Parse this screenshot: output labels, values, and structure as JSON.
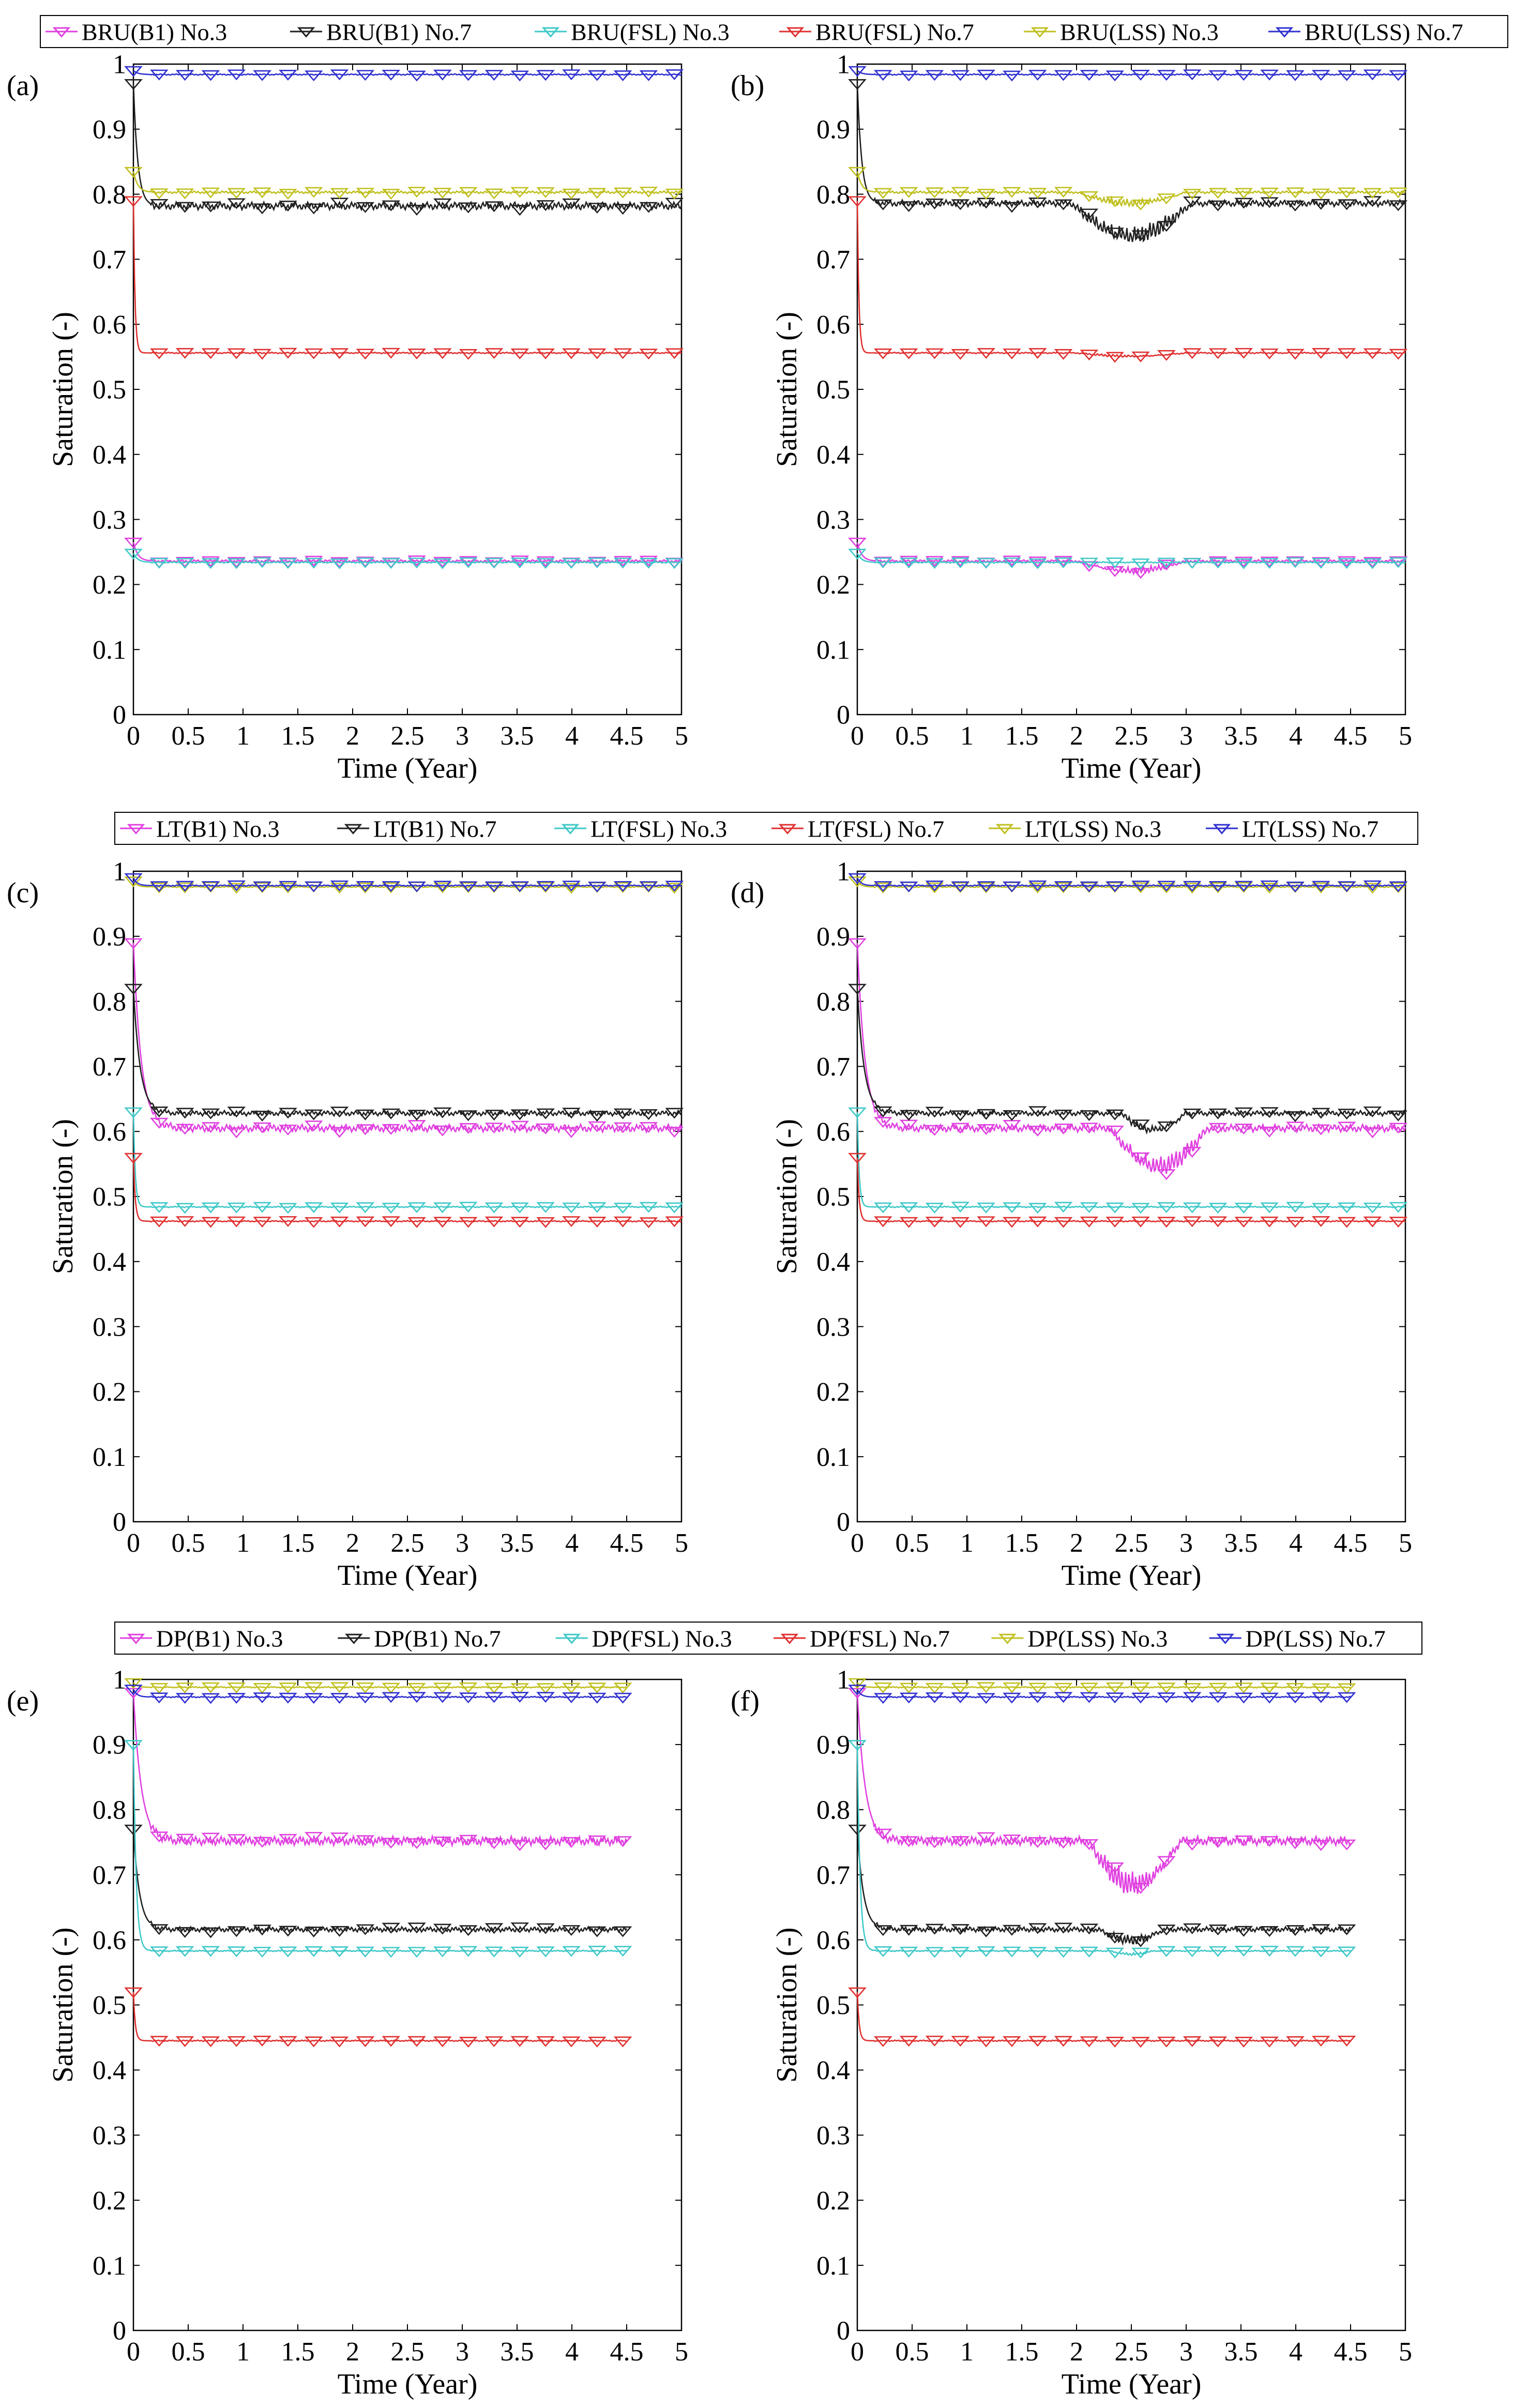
{
  "figure": {
    "legend_rows": [
      [
        "BRU(B1) No.3",
        "BRU(B1) No.7",
        "BRU(FSL) No.3",
        "BRU(FSL) No.7",
        "BRU(LSS) No.3",
        "BRU(LSS) No.7"
      ],
      [
        "LT(B1) No.3",
        "LT(B1) No.7",
        "LT(FSL) No.3",
        "LT(FSL) No.7",
        "LT(LSS) No.3",
        "LT(LSS) No.7"
      ],
      [
        "DP(B1) No.3",
        "DP(B1) No.7",
        "DP(FSL) No.3",
        "DP(FSL) No.7",
        "DP(LSS) No.3",
        "DP(LSS) No.7"
      ]
    ],
    "colors": [
      "#e040e0",
      "#202020",
      "#40c8c8",
      "#e03030",
      "#c0c020",
      "#3030d0"
    ]
  },
  "chart_data": [
    {
      "type": "line",
      "panel_label": "(a)",
      "row": 0,
      "xlabel": "Time (Year)",
      "ylabel": "Saturation (-)",
      "xlim": [
        0,
        5
      ],
      "ylim": [
        0,
        1
      ],
      "xticks": [
        "0",
        "0.5",
        "1",
        "1.5",
        "2",
        "2.5",
        "3",
        "3.5",
        "4",
        "4.5",
        "5"
      ],
      "yticks": [
        "0",
        "0.1",
        "0.2",
        "0.3",
        "0.4",
        "0.5",
        "0.6",
        "0.7",
        "0.8",
        "0.9",
        "1"
      ],
      "x_end": 5,
      "series": [
        {
          "name": "BRU(B1) No.3",
          "y0": 0.265,
          "plateau": 0.236,
          "k": 25,
          "noise": 0.002
        },
        {
          "name": "BRU(B1) No.7",
          "y0": 0.97,
          "plateau": 0.782,
          "k": 25,
          "noise": 0.006
        },
        {
          "name": "BRU(FSL) No.3",
          "y0": 0.248,
          "plateau": 0.234,
          "k": 25,
          "noise": 0.001
        },
        {
          "name": "BRU(FSL) No.7",
          "y0": 0.79,
          "plateau": 0.556,
          "k": 70,
          "noise": 0.001
        },
        {
          "name": "BRU(LSS) No.3",
          "y0": 0.835,
          "plateau": 0.803,
          "k": 25,
          "noise": 0.002
        },
        {
          "name": "BRU(LSS) No.7",
          "y0": 0.99,
          "plateau": 0.984,
          "k": 25,
          "noise": 0.001
        }
      ]
    },
    {
      "type": "line",
      "panel_label": "(b)",
      "row": 0,
      "xlabel": "Time (Year)",
      "ylabel": "Saturation (-)",
      "xlim": [
        0,
        5
      ],
      "ylim": [
        0,
        1
      ],
      "xticks": [
        "0",
        "0.5",
        "1",
        "1.5",
        "2",
        "2.5",
        "3",
        "3.5",
        "4",
        "4.5",
        "5"
      ],
      "yticks": [
        "0",
        "0.1",
        "0.2",
        "0.3",
        "0.4",
        "0.5",
        "0.6",
        "0.7",
        "0.8",
        "0.9",
        "1"
      ],
      "x_end": 5,
      "series": [
        {
          "name": "BRU(B1) No.3",
          "y0": 0.265,
          "plateau": 0.236,
          "k": 25,
          "noise": 0.002,
          "dip": {
            "from": 2.0,
            "to": 3.0,
            "depth": 0.018
          }
        },
        {
          "name": "BRU(B1) No.7",
          "y0": 0.97,
          "plateau": 0.786,
          "k": 25,
          "noise": 0.005,
          "dip": {
            "from": 1.95,
            "to": 3.05,
            "depth": 0.06
          }
        },
        {
          "name": "BRU(FSL) No.3",
          "y0": 0.248,
          "plateau": 0.234,
          "k": 25,
          "noise": 0.001
        },
        {
          "name": "BRU(FSL) No.7",
          "y0": 0.79,
          "plateau": 0.556,
          "k": 70,
          "noise": 0.001,
          "dip": {
            "from": 2.0,
            "to": 3.0,
            "depth": 0.006
          }
        },
        {
          "name": "BRU(LSS) No.3",
          "y0": 0.835,
          "plateau": 0.803,
          "k": 25,
          "noise": 0.002,
          "dip": {
            "from": 2.0,
            "to": 3.0,
            "depth": 0.02
          }
        },
        {
          "name": "BRU(LSS) No.7",
          "y0": 0.99,
          "plateau": 0.984,
          "k": 25,
          "noise": 0.001
        }
      ]
    },
    {
      "type": "line",
      "panel_label": "(c)",
      "row": 1,
      "xlabel": "Time (Year)",
      "ylabel": "Saturation (-)",
      "xlim": [
        0,
        5
      ],
      "ylim": [
        0,
        1
      ],
      "xticks": [
        "0",
        "0.5",
        "1",
        "1.5",
        "2",
        "2.5",
        "3",
        "3.5",
        "4",
        "4.5",
        "5"
      ],
      "yticks": [
        "0",
        "0.1",
        "0.2",
        "0.3",
        "0.4",
        "0.5",
        "0.6",
        "0.7",
        "0.8",
        "0.9",
        "1"
      ],
      "x_end": 5,
      "series": [
        {
          "name": "LT(B1) No.3",
          "y0": 0.89,
          "plateau": 0.605,
          "k": 14,
          "noise": 0.006
        },
        {
          "name": "LT(B1) No.7",
          "y0": 0.82,
          "plateau": 0.628,
          "k": 16,
          "noise": 0.004
        },
        {
          "name": "LT(FSL) No.3",
          "y0": 0.63,
          "plateau": 0.484,
          "k": 60,
          "noise": 0.001
        },
        {
          "name": "LT(FSL) No.7",
          "y0": 0.56,
          "plateau": 0.462,
          "k": 60,
          "noise": 0.001
        },
        {
          "name": "LT(LSS) No.3",
          "y0": 0.985,
          "plateau": 0.976,
          "k": 30,
          "noise": 0.001
        },
        {
          "name": "LT(LSS) No.7",
          "y0": 0.99,
          "plateau": 0.978,
          "k": 30,
          "noise": 0.001
        }
      ]
    },
    {
      "type": "line",
      "panel_label": "(d)",
      "row": 1,
      "xlabel": "Time (Year)",
      "ylabel": "Saturation (-)",
      "xlim": [
        0,
        5
      ],
      "ylim": [
        0,
        1
      ],
      "xticks": [
        "0",
        "0.5",
        "1",
        "1.5",
        "2",
        "2.5",
        "3",
        "3.5",
        "4",
        "4.5",
        "5"
      ],
      "yticks": [
        "0",
        "0.1",
        "0.2",
        "0.3",
        "0.4",
        "0.5",
        "0.6",
        "0.7",
        "0.8",
        "0.9",
        "1"
      ],
      "x_end": 5,
      "series": [
        {
          "name": "LT(B1) No.3",
          "y0": 0.89,
          "plateau": 0.605,
          "k": 14,
          "noise": 0.006,
          "dip": {
            "from": 2.3,
            "to": 3.2,
            "depth": 0.07
          }
        },
        {
          "name": "LT(B1) No.7",
          "y0": 0.82,
          "plateau": 0.628,
          "k": 16,
          "noise": 0.004,
          "dip": {
            "from": 2.4,
            "to": 3.0,
            "depth": 0.03
          }
        },
        {
          "name": "LT(FSL) No.3",
          "y0": 0.63,
          "plateau": 0.484,
          "k": 60,
          "noise": 0.001
        },
        {
          "name": "LT(FSL) No.7",
          "y0": 0.56,
          "plateau": 0.462,
          "k": 60,
          "noise": 0.001
        },
        {
          "name": "LT(LSS) No.3",
          "y0": 0.985,
          "plateau": 0.976,
          "k": 30,
          "noise": 0.001
        },
        {
          "name": "LT(LSS) No.7",
          "y0": 0.99,
          "plateau": 0.978,
          "k": 30,
          "noise": 0.001
        }
      ]
    },
    {
      "type": "line",
      "panel_label": "(e)",
      "row": 2,
      "xlabel": "Time (Year)",
      "ylabel": "Saturation (-)",
      "xlim": [
        0,
        5
      ],
      "ylim": [
        0,
        1
      ],
      "xticks": [
        "0",
        "0.5",
        "1",
        "1.5",
        "2",
        "2.5",
        "3",
        "3.5",
        "4",
        "4.5",
        "5"
      ],
      "yticks": [
        "0",
        "0.1",
        "0.2",
        "0.3",
        "0.4",
        "0.5",
        "0.6",
        "0.7",
        "0.8",
        "0.9",
        "1"
      ],
      "x_end": 4.5,
      "series": [
        {
          "name": "DP(B1) No.3",
          "y0": 0.98,
          "plateau": 0.752,
          "k": 14,
          "noise": 0.007
        },
        {
          "name": "DP(B1) No.7",
          "y0": 0.77,
          "plateau": 0.616,
          "k": 18,
          "noise": 0.004
        },
        {
          "name": "DP(FSL) No.3",
          "y0": 0.9,
          "plateau": 0.583,
          "k": 40,
          "noise": 0.001
        },
        {
          "name": "DP(FSL) No.7",
          "y0": 0.52,
          "plateau": 0.445,
          "k": 60,
          "noise": 0.001
        },
        {
          "name": "DP(LSS) No.3",
          "y0": 0.995,
          "plateau": 0.988,
          "k": 30,
          "noise": 0.001
        },
        {
          "name": "DP(LSS) No.7",
          "y0": 0.985,
          "plateau": 0.973,
          "k": 30,
          "noise": 0.001
        }
      ]
    },
    {
      "type": "line",
      "panel_label": "(f)",
      "row": 2,
      "xlabel": "Time (Year)",
      "ylabel": "Saturation (-)",
      "xlim": [
        0,
        5
      ],
      "ylim": [
        0,
        1
      ],
      "xticks": [
        "0",
        "0.5",
        "1",
        "1.5",
        "2",
        "2.5",
        "3",
        "3.5",
        "4",
        "4.5",
        "5"
      ],
      "yticks": [
        "0",
        "0.1",
        "0.2",
        "0.3",
        "0.4",
        "0.5",
        "0.6",
        "0.7",
        "0.8",
        "0.9",
        "1"
      ],
      "x_end": 4.5,
      "series": [
        {
          "name": "DP(B1) No.3",
          "y0": 0.98,
          "plateau": 0.752,
          "k": 14,
          "noise": 0.007,
          "dip": {
            "from": 2.1,
            "to": 2.95,
            "depth": 0.08
          }
        },
        {
          "name": "DP(B1) No.7",
          "y0": 0.77,
          "plateau": 0.616,
          "k": 18,
          "noise": 0.004,
          "dip": {
            "from": 2.2,
            "to": 2.8,
            "depth": 0.02
          }
        },
        {
          "name": "DP(FSL) No.3",
          "y0": 0.9,
          "plateau": 0.583,
          "k": 40,
          "noise": 0.001,
          "dip": {
            "from": 2.3,
            "to": 2.7,
            "depth": 0.006
          }
        },
        {
          "name": "DP(FSL) No.7",
          "y0": 0.52,
          "plateau": 0.445,
          "k": 60,
          "noise": 0.001
        },
        {
          "name": "DP(LSS) No.3",
          "y0": 0.995,
          "plateau": 0.988,
          "k": 30,
          "noise": 0.001
        },
        {
          "name": "DP(LSS) No.7",
          "y0": 0.985,
          "plateau": 0.973,
          "k": 30,
          "noise": 0.001
        }
      ]
    }
  ]
}
